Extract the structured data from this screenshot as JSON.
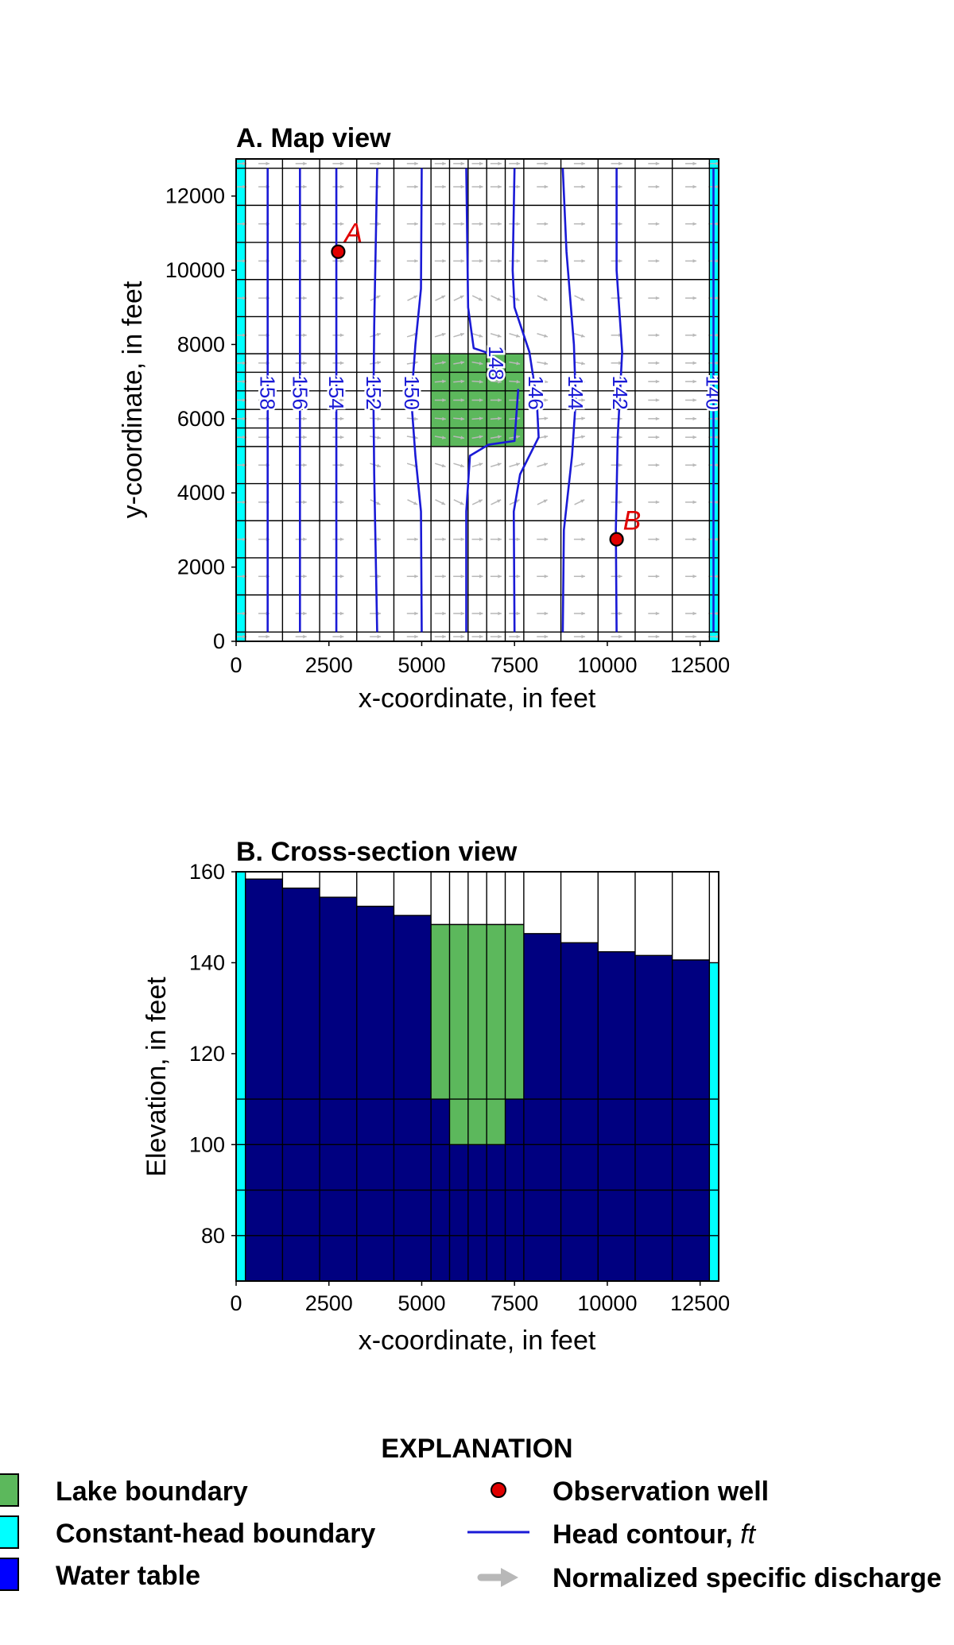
{
  "colors": {
    "lake": "#5cb85c",
    "constant_head": "#00ffff",
    "water_table": "#0000ff",
    "aquifer_fill": "#000080",
    "contour": "#1a1ad6",
    "well": "#e00000",
    "arrow": "#b8b8b8",
    "grid": "#000000"
  },
  "chart_data": [
    {
      "id": "map",
      "type": "scatter",
      "title": "A. Map view",
      "xlabel": "x-coordinate, in feet",
      "ylabel": "y-coordinate, in feet",
      "xlim": [
        0,
        13000
      ],
      "ylim": [
        0,
        13000
      ],
      "xticks": [
        0,
        2500,
        5000,
        7500,
        10000,
        12500
      ],
      "yticks": [
        0,
        2000,
        4000,
        6000,
        8000,
        10000,
        12000
      ],
      "col_edges": [
        0,
        250,
        1250,
        2250,
        3250,
        4250,
        5250,
        5750,
        6250,
        6750,
        7250,
        7750,
        8750,
        9750,
        10750,
        11750,
        12750,
        13000
      ],
      "row_edges": [
        0,
        250,
        1250,
        2250,
        3250,
        4250,
        5250,
        5750,
        6250,
        6750,
        7250,
        7750,
        8750,
        9750,
        10750,
        11750,
        12750,
        13000
      ],
      "lake": {
        "x": [
          5250,
          7750
        ],
        "y": [
          5250,
          7750
        ]
      },
      "constant_head_cols": [
        [
          0,
          250
        ],
        [
          12750,
          13000
        ]
      ],
      "wells": [
        {
          "label": "A",
          "x": 2750,
          "y": 10500
        },
        {
          "label": "B",
          "x": 10250,
          "y": 2750
        }
      ],
      "contours": [
        {
          "level": "158",
          "points": [
            [
              850,
              250
            ],
            [
              850,
              12750
            ]
          ]
        },
        {
          "level": "156",
          "points": [
            [
              1720,
              250
            ],
            [
              1720,
              12750
            ]
          ]
        },
        {
          "level": "154",
          "points": [
            [
              2700,
              250
            ],
            [
              2700,
              12750
            ]
          ]
        },
        {
          "level": "152",
          "points": [
            [
              3800,
              250
            ],
            [
              3720,
              4500
            ],
            [
              3700,
              6500
            ],
            [
              3720,
              8500
            ],
            [
              3800,
              12750
            ]
          ]
        },
        {
          "level": "150",
          "points": [
            [
              5000,
              250
            ],
            [
              4980,
              3500
            ],
            [
              4830,
              5000
            ],
            [
              4720,
              6500
            ],
            [
              4830,
              8000
            ],
            [
              4980,
              9500
            ],
            [
              5000,
              12750
            ]
          ]
        },
        {
          "level": "148",
          "points": [
            [
              6200,
              250
            ],
            [
              6200,
              3500
            ],
            [
              6300,
              5000
            ],
            [
              6800,
              5300
            ],
            [
              7500,
              5400
            ],
            [
              7600,
              6800
            ]
          ]
        },
        {
          "level": "148",
          "points": [
            [
              7050,
              7600
            ],
            [
              6700,
              7800
            ],
            [
              6400,
              7900
            ],
            [
              6250,
              9000
            ],
            [
              6200,
              12750
            ]
          ]
        },
        {
          "level": "146",
          "points": [
            [
              7500,
              250
            ],
            [
              7480,
              3500
            ],
            [
              7650,
              4500
            ],
            [
              8150,
              5500
            ],
            [
              8100,
              6500
            ],
            [
              7900,
              7800
            ],
            [
              7500,
              9000
            ],
            [
              7450,
              10000
            ],
            [
              7500,
              12750
            ]
          ]
        },
        {
          "level": "144",
          "points": [
            [
              8800,
              250
            ],
            [
              8830,
              3000
            ],
            [
              9050,
              5000
            ],
            [
              9150,
              6500
            ],
            [
              9100,
              8000
            ],
            [
              8900,
              10500
            ],
            [
              8800,
              12750
            ]
          ]
        },
        {
          "level": "142",
          "points": [
            [
              10250,
              250
            ],
            [
              10230,
              3000
            ],
            [
              10280,
              5500
            ],
            [
              10400,
              7800
            ],
            [
              10250,
              10000
            ],
            [
              10250,
              12750
            ]
          ]
        },
        {
          "level": "140",
          "points": [
            [
              12860,
              250
            ],
            [
              12860,
              12750
            ]
          ]
        }
      ],
      "contour_label_y": 6700
    },
    {
      "id": "section",
      "type": "bar",
      "title": "B. Cross-section view",
      "xlabel": "x-coordinate, in feet",
      "ylabel": "Elevation, in feet",
      "xlim": [
        0,
        13000
      ],
      "ylim": [
        70,
        160
      ],
      "xticks": [
        0,
        2500,
        5000,
        7500,
        10000,
        12500
      ],
      "yticks": [
        80,
        100,
        120,
        140,
        160
      ],
      "col_edges": [
        0,
        250,
        1250,
        2250,
        3250,
        4250,
        5250,
        5750,
        6250,
        6750,
        7250,
        7750,
        8750,
        9750,
        10750,
        11750,
        12750,
        13000
      ],
      "layer_tops": [
        110,
        100,
        90,
        80
      ],
      "water_table": [
        160,
        158.4,
        156.4,
        154.4,
        152.4,
        150.4,
        148.4,
        148.4,
        148.4,
        148.4,
        148.4,
        146.4,
        144.4,
        142.4,
        141.6,
        140.6,
        140
      ],
      "lake_cells": [
        {
          "x": [
            5250,
            7750
          ],
          "y": [
            110,
            148.4
          ]
        },
        {
          "x": [
            5750,
            7250
          ],
          "y": [
            100,
            110
          ]
        }
      ],
      "constant_head_cells": [
        {
          "x": [
            0,
            250
          ],
          "y": [
            70,
            160
          ]
        },
        {
          "x": [
            12750,
            13000
          ],
          "y": [
            70,
            140
          ]
        }
      ]
    }
  ],
  "legend": {
    "title": "EXPLANATION",
    "items": [
      {
        "label": "Lake boundary",
        "italic": ""
      },
      {
        "label": "Constant-head boundary",
        "italic": ""
      },
      {
        "label": "Water table",
        "italic": ""
      },
      {
        "label": "Observation well",
        "italic": ""
      },
      {
        "label": "Head contour, ",
        "italic": "ft"
      },
      {
        "label": "Normalized specific discharge",
        "italic": ""
      }
    ]
  }
}
